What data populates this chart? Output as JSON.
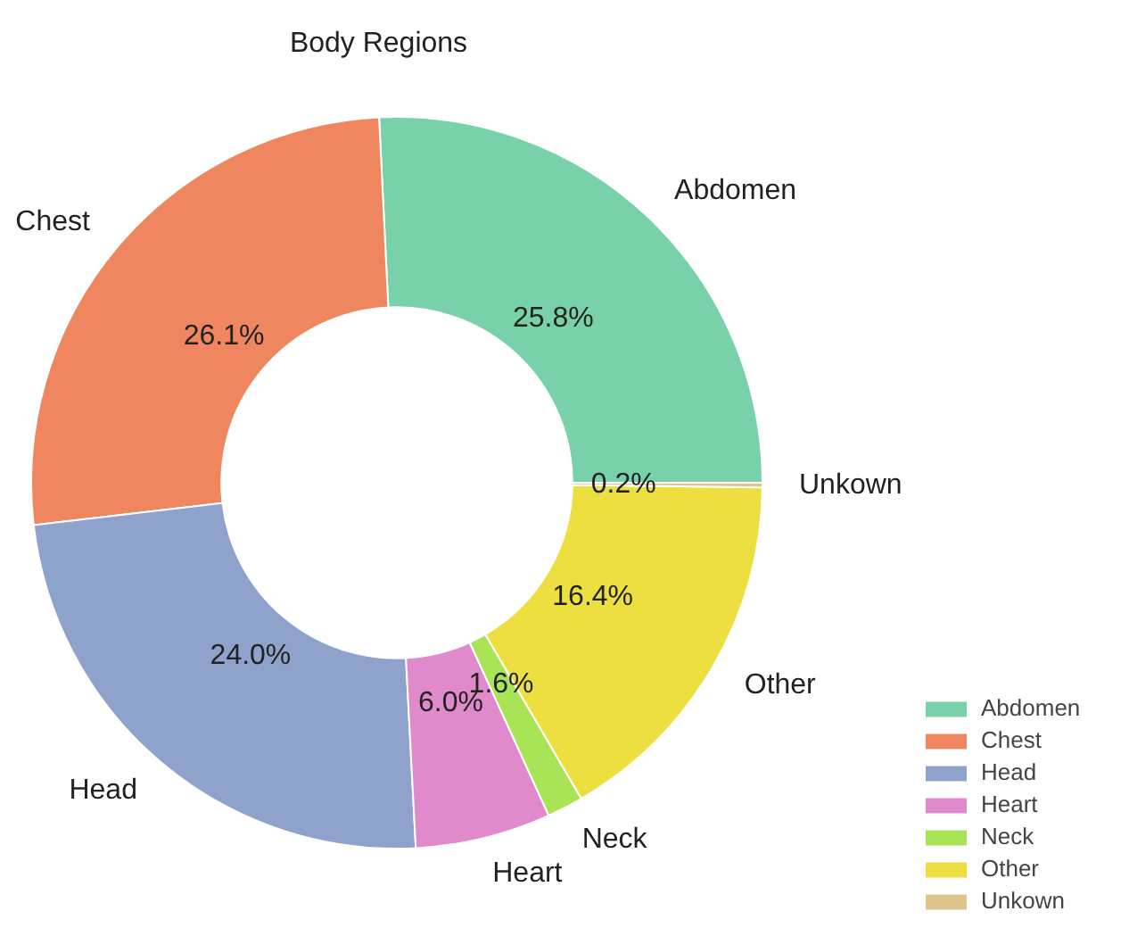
{
  "chart_data": {
    "type": "donut",
    "title": "Body Regions",
    "categories": [
      "Abdomen",
      "Chest",
      "Head",
      "Heart",
      "Neck",
      "Other",
      "Unkown"
    ],
    "values": [
      25.8,
      26.1,
      24.0,
      6.0,
      1.6,
      16.4,
      0.2
    ],
    "colors": [
      "#78d1a8",
      "#ef8660",
      "#8fa2cc",
      "#e08acb",
      "#a9e356",
      "#eedf40",
      "#e0c48e"
    ],
    "value_labels": [
      "25.8%",
      "26.1%",
      "24.0%",
      "6.0%",
      "1.6%",
      "16.4%",
      "0.2%"
    ],
    "legend": "bottom right"
  }
}
